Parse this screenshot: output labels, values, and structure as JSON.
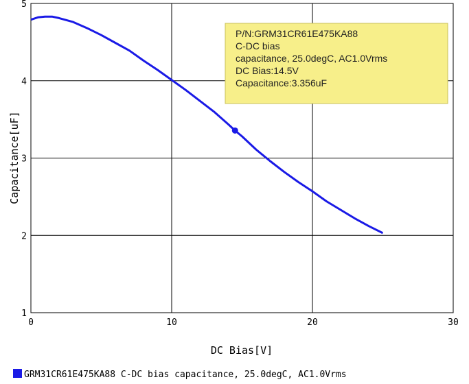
{
  "chart_data": {
    "type": "line",
    "xlabel": "DC Bias[V]",
    "ylabel": "Capacitance[uF]",
    "xlim": [
      0,
      30
    ],
    "ylim": [
      1,
      5
    ],
    "x_ticks": [
      "0",
      "10",
      "20",
      "30"
    ],
    "y_ticks": [
      "1",
      "2",
      "3",
      "4",
      "5"
    ],
    "grid": true,
    "series": [
      {
        "name": "GRM31CR61E475KA88 C-DC bias capacitance, 25.0degC, AC1.0Vrms",
        "color": "#1a1ae6",
        "x": [
          0,
          0.5,
          1,
          1.5,
          2,
          3,
          4,
          5,
          6,
          7,
          8,
          9,
          10,
          11,
          12,
          13,
          14,
          14.5,
          15,
          16,
          17,
          18,
          19,
          20,
          21,
          22,
          23,
          24,
          25
        ],
        "y": [
          4.79,
          4.82,
          4.83,
          4.83,
          4.81,
          4.76,
          4.68,
          4.59,
          4.49,
          4.39,
          4.26,
          4.14,
          4.01,
          3.88,
          3.74,
          3.6,
          3.44,
          3.356,
          3.28,
          3.11,
          2.96,
          2.82,
          2.69,
          2.57,
          2.44,
          2.33,
          2.22,
          2.12,
          2.03
        ]
      }
    ],
    "marker": {
      "x": 14.5,
      "y": 3.356
    }
  },
  "tooltip": {
    "lines": [
      "P/N:GRM31CR61E475KA88",
      "C-DC bias",
      "capacitance, 25.0degC, AC1.0Vrms",
      "DC Bias:14.5V",
      "Capacitance:3.356uF"
    ],
    "background": "#f7ef8a",
    "border": "#c8c25c"
  },
  "legend": {
    "label": "GRM31CR61E475KA88 C-DC bias capacitance, 25.0degC, AC1.0Vrms",
    "swatch_color": "#1a1ae6"
  }
}
